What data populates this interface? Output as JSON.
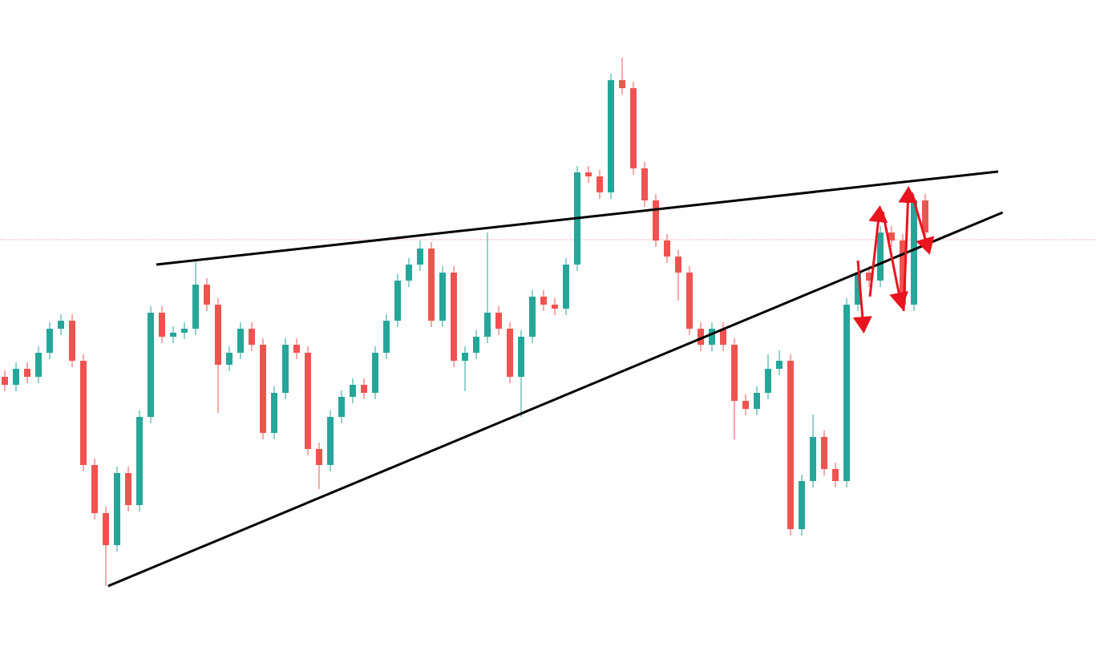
{
  "chart_data": {
    "type": "candlestick",
    "ylim": [
      0,
      807
    ],
    "up_color": "#26a69a",
    "down_color": "#ef5350",
    "ohlc": [
      [
        337,
        345,
        319,
        327
      ],
      [
        327,
        355,
        319,
        347
      ],
      [
        347,
        355,
        329,
        337
      ],
      [
        337,
        375,
        329,
        367
      ],
      [
        367,
        405,
        359,
        397
      ],
      [
        397,
        415,
        389,
        407
      ],
      [
        407,
        415,
        349,
        357
      ],
      [
        357,
        365,
        219,
        227
      ],
      [
        227,
        235,
        159,
        167
      ],
      [
        167,
        175,
        76,
        127
      ],
      [
        127,
        225,
        119,
        217
      ],
      [
        217,
        225,
        169,
        177
      ],
      [
        177,
        295,
        169,
        287
      ],
      [
        287,
        425,
        279,
        417
      ],
      [
        417,
        425,
        379,
        387
      ],
      [
        387,
        400,
        379,
        392
      ],
      [
        392,
        405,
        384,
        397
      ],
      [
        397,
        482,
        389,
        452
      ],
      [
        452,
        460,
        419,
        427
      ],
      [
        427,
        435,
        292,
        352
      ],
      [
        352,
        375,
        344,
        367
      ],
      [
        367,
        405,
        359,
        397
      ],
      [
        397,
        405,
        369,
        377
      ],
      [
        377,
        385,
        259,
        267
      ],
      [
        267,
        325,
        259,
        317
      ],
      [
        317,
        385,
        309,
        377
      ],
      [
        377,
        385,
        359,
        367
      ],
      [
        367,
        375,
        239,
        247
      ],
      [
        247,
        255,
        197,
        227
      ],
      [
        227,
        295,
        219,
        287
      ],
      [
        287,
        320,
        279,
        312
      ],
      [
        312,
        335,
        304,
        327
      ],
      [
        327,
        335,
        309,
        317
      ],
      [
        317,
        375,
        309,
        367
      ],
      [
        367,
        415,
        359,
        407
      ],
      [
        407,
        465,
        399,
        457
      ],
      [
        457,
        485,
        449,
        477
      ],
      [
        477,
        507,
        469,
        497
      ],
      [
        497,
        505,
        399,
        407
      ],
      [
        407,
        475,
        399,
        467
      ],
      [
        467,
        475,
        349,
        357
      ],
      [
        357,
        375,
        319,
        367
      ],
      [
        367,
        395,
        359,
        387
      ],
      [
        387,
        517,
        379,
        417
      ],
      [
        417,
        425,
        389,
        397
      ],
      [
        397,
        405,
        329,
        337
      ],
      [
        337,
        395,
        287,
        387
      ],
      [
        387,
        445,
        379,
        437
      ],
      [
        437,
        445,
        419,
        427
      ],
      [
        427,
        435,
        414,
        422
      ],
      [
        422,
        485,
        414,
        477
      ],
      [
        477,
        600,
        469,
        592
      ],
      [
        592,
        600,
        579,
        587
      ],
      [
        587,
        595,
        559,
        567
      ],
      [
        567,
        715,
        559,
        707
      ],
      [
        707,
        735,
        689,
        697
      ],
      [
        697,
        705,
        589,
        597
      ],
      [
        597,
        605,
        549,
        557
      ],
      [
        557,
        565,
        499,
        507
      ],
      [
        507,
        515,
        479,
        487
      ],
      [
        487,
        495,
        432,
        467
      ],
      [
        467,
        475,
        389,
        397
      ],
      [
        397,
        405,
        369,
        377
      ],
      [
        377,
        405,
        369,
        397
      ],
      [
        397,
        405,
        369,
        377
      ],
      [
        377,
        385,
        259,
        307
      ],
      [
        307,
        315,
        289,
        297
      ],
      [
        297,
        325,
        289,
        317
      ],
      [
        317,
        365,
        309,
        347
      ],
      [
        347,
        370,
        339,
        357
      ],
      [
        357,
        365,
        139,
        147
      ],
      [
        147,
        215,
        139,
        207
      ],
      [
        207,
        290,
        199,
        262
      ],
      [
        262,
        270,
        214,
        222
      ],
      [
        222,
        230,
        199,
        207
      ],
      [
        207,
        435,
        199,
        427
      ],
      [
        427,
        475,
        419,
        467
      ],
      [
        467,
        475,
        449,
        457
      ],
      [
        457,
        525,
        449,
        517
      ],
      [
        517,
        525,
        499,
        507
      ],
      [
        507,
        515,
        419,
        427
      ],
      [
        427,
        565,
        419,
        557
      ],
      [
        557,
        565,
        509,
        517
      ]
    ],
    "trendlines": [
      {
        "x": [
          13.5,
          88.5
        ],
        "y": [
          477,
          593
        ],
        "color": "#000000"
      },
      {
        "x": [
          9.2,
          88.9
        ],
        "y": [
          76,
          542
        ],
        "color": "#000000"
      }
    ],
    "price_line": {
      "value": 508,
      "color": "#ef5350"
    }
  }
}
